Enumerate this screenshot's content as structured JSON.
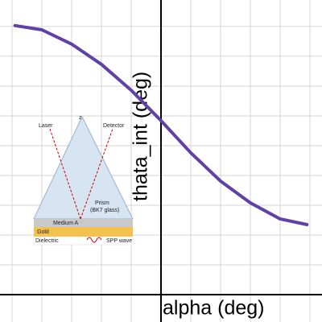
{
  "chart_data": {
    "type": "line",
    "x_label": "alpha (deg)",
    "y_label": "thata_int (deg)",
    "x": [
      -4.9,
      -4,
      -3,
      -2,
      -1,
      0,
      1,
      2,
      3,
      4,
      4.9
    ],
    "series": [
      {
        "color": "#6042a6",
        "values": [
          9.03,
          8.89,
          8.41,
          7.73,
          6.86,
          5.84,
          4.76,
          3.81,
          3.08,
          2.54,
          2.35
        ]
      }
    ],
    "xlim": [
      -5.405,
      5.405
    ],
    "ylim": [
      -0.92,
      9.89
    ],
    "grid_x": [
      -5,
      -4,
      -3,
      -2,
      -1,
      1,
      2,
      3,
      4,
      5
    ],
    "grid_y": [
      1,
      2,
      3,
      4,
      5,
      6,
      7,
      8,
      9
    ],
    "grid": true,
    "annotations": [
      "Laser",
      "Detector",
      "z",
      "Prism",
      "(BK7 glass)",
      "Medium A",
      "Gold",
      "Dielectric",
      "SPP wave"
    ]
  }
}
